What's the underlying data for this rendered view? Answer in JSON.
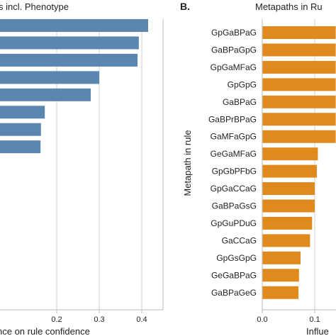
{
  "chart_data": [
    {
      "type": "bar",
      "orientation": "horizontal",
      "title": "s incl. Phenotype",
      "xlabel": "nce on rule confidence",
      "ylabel": "",
      "xlim": [
        0,
        0.45
      ],
      "xticks": [
        0.2,
        0.3,
        0.4
      ],
      "grid": "vertical",
      "color": "#5b86b0",
      "values": [
        0.415,
        0.393,
        0.39,
        0.3,
        0.28,
        0.172,
        0.163,
        0.162
      ]
    },
    {
      "type": "bar",
      "orientation": "horizontal",
      "panel_label": "B.",
      "title": "Metapaths in Ru",
      "xlabel": "Influe",
      "ylabel": "Metapath in rule",
      "xlim": [
        0,
        0.14
      ],
      "xticks": [
        0.0,
        0.1
      ],
      "grid": "vertical",
      "color": "#e08a1e",
      "categories": [
        "GpGaBPaG",
        "GaBPaGpG",
        "GpGaMFaG",
        "GpGpG",
        "GaBPaG",
        "GaBPrBPaG",
        "GaMFaGpG",
        "GeGaMFaG",
        "GpGbPFbG",
        "GpGaCCaG",
        "GaBPaGsG",
        "GpGuPDuG",
        "GaCCaG",
        "GpGsGpG",
        "GeGaBPaG",
        "GaBPaGeG"
      ],
      "values": [
        0.14,
        0.14,
        0.14,
        0.14,
        0.14,
        0.14,
        0.14,
        0.106,
        0.104,
        0.1,
        0.1,
        0.095,
        0.091,
        0.073,
        0.07,
        0.069
      ]
    }
  ]
}
